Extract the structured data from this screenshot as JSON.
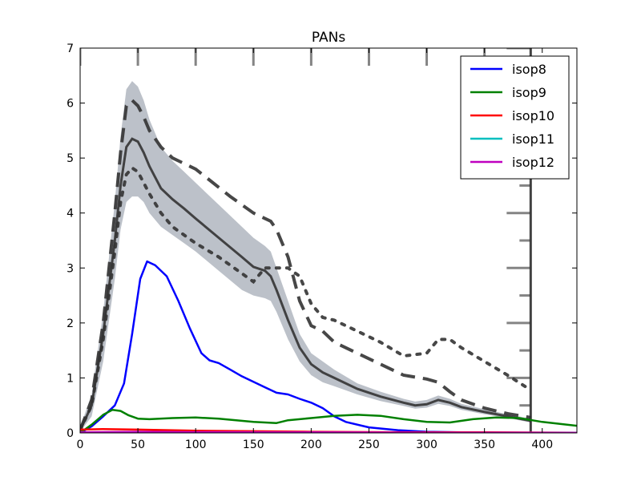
{
  "chart_data": {
    "type": "line",
    "title": "PANs",
    "xlabel": "",
    "ylabel": "",
    "xlim": [
      0,
      430
    ],
    "ylim": [
      0,
      7
    ],
    "x_ticks": [
      0,
      50,
      100,
      150,
      200,
      250,
      300,
      350,
      400
    ],
    "y_ticks": [
      0,
      1,
      2,
      3,
      4,
      5,
      6,
      7
    ],
    "legend_position": "top-right",
    "grid": false,
    "series": [
      {
        "name": "isop8",
        "color": "#0000ff",
        "x": [
          0,
          10,
          20,
          30,
          38,
          45,
          52,
          58,
          65,
          75,
          85,
          95,
          105,
          112,
          120,
          130,
          140,
          150,
          160,
          170,
          180,
          190,
          200,
          210,
          220,
          230,
          250,
          275,
          300,
          330,
          360,
          400,
          430
        ],
        "y": [
          0,
          0.12,
          0.3,
          0.5,
          0.9,
          1.8,
          2.8,
          3.12,
          3.05,
          2.85,
          2.4,
          1.9,
          1.45,
          1.32,
          1.27,
          1.15,
          1.03,
          0.93,
          0.83,
          0.73,
          0.7,
          0.62,
          0.55,
          0.45,
          0.3,
          0.2,
          0.1,
          0.05,
          0.02,
          0.01,
          0.005,
          0.0,
          0.0
        ]
      },
      {
        "name": "isop9",
        "color": "#008000",
        "x": [
          0,
          10,
          20,
          28,
          35,
          42,
          50,
          60,
          80,
          100,
          120,
          150,
          170,
          180,
          200,
          220,
          240,
          260,
          280,
          300,
          320,
          340,
          360,
          380,
          400,
          430
        ],
        "y": [
          0.0,
          0.15,
          0.33,
          0.42,
          0.4,
          0.32,
          0.26,
          0.25,
          0.27,
          0.28,
          0.26,
          0.2,
          0.18,
          0.23,
          0.27,
          0.31,
          0.33,
          0.31,
          0.25,
          0.2,
          0.19,
          0.25,
          0.28,
          0.27,
          0.2,
          0.13
        ]
      },
      {
        "name": "isop10",
        "color": "#ff0000",
        "x": [
          0,
          20,
          50,
          100,
          150,
          200,
          250,
          300,
          350,
          430
        ],
        "y": [
          0.06,
          0.07,
          0.06,
          0.04,
          0.03,
          0.02,
          0.015,
          0.01,
          0.01,
          0.005
        ]
      },
      {
        "name": "isop11",
        "color": "#00bfbf",
        "x": [
          0,
          50,
          100,
          200,
          300,
          430
        ],
        "y": [
          0.005,
          0.01,
          0.01,
          0.005,
          0.003,
          0.002
        ]
      },
      {
        "name": "isop12",
        "color": "#bf00bf",
        "x": [
          0,
          50,
          100,
          200,
          300,
          430
        ],
        "y": [
          0.01,
          0.02,
          0.015,
          0.01,
          0.005,
          0.002
        ]
      }
    ],
    "overlay": {
      "mean_color": "#333333",
      "band_color": "#b0b6c0",
      "x_max": 390,
      "mean": {
        "x": [
          0,
          10,
          20,
          30,
          35,
          40,
          45,
          50,
          55,
          60,
          70,
          80,
          90,
          100,
          120,
          140,
          150,
          160,
          165,
          170,
          180,
          190,
          200,
          210,
          220,
          240,
          260,
          280,
          290,
          300,
          310,
          320,
          330,
          350,
          370,
          390
        ],
        "y": [
          0.05,
          0.5,
          1.8,
          3.5,
          4.5,
          5.2,
          5.35,
          5.3,
          5.1,
          4.85,
          4.45,
          4.25,
          4.08,
          3.9,
          3.55,
          3.2,
          3.02,
          2.95,
          2.85,
          2.6,
          2.05,
          1.55,
          1.25,
          1.1,
          1.0,
          0.8,
          0.66,
          0.55,
          0.5,
          0.52,
          0.6,
          0.55,
          0.47,
          0.38,
          0.3,
          0.22
        ]
      },
      "upper": [
        0.1,
        0.7,
        2.2,
        4.2,
        5.4,
        6.25,
        6.4,
        6.3,
        6.05,
        5.7,
        5.2,
        4.95,
        4.75,
        4.55,
        4.15,
        3.75,
        3.55,
        3.4,
        3.3,
        3.0,
        2.4,
        1.8,
        1.45,
        1.3,
        1.15,
        0.9,
        0.75,
        0.62,
        0.57,
        0.6,
        0.68,
        0.62,
        0.53,
        0.43,
        0.34,
        0.26
      ],
      "lower": [
        0.02,
        0.3,
        1.3,
        2.8,
        3.7,
        4.2,
        4.3,
        4.3,
        4.2,
        4.0,
        3.75,
        3.6,
        3.45,
        3.3,
        2.95,
        2.6,
        2.5,
        2.45,
        2.4,
        2.2,
        1.7,
        1.3,
        1.05,
        0.92,
        0.85,
        0.7,
        0.58,
        0.49,
        0.44,
        0.46,
        0.53,
        0.49,
        0.42,
        0.34,
        0.27,
        0.19
      ],
      "dashed": {
        "x": [
          0,
          10,
          20,
          30,
          35,
          40,
          45,
          50,
          55,
          60,
          70,
          80,
          100,
          130,
          150,
          160,
          165,
          170,
          180,
          190,
          200,
          210,
          220,
          240,
          260,
          280,
          300,
          310,
          320,
          330,
          350,
          370,
          390
        ],
        "y": [
          0.05,
          0.6,
          2.0,
          4.0,
          5.1,
          5.95,
          6.05,
          5.95,
          5.75,
          5.5,
          5.2,
          5.0,
          4.8,
          4.3,
          4.0,
          3.9,
          3.85,
          3.7,
          3.2,
          2.4,
          1.95,
          1.85,
          1.65,
          1.45,
          1.25,
          1.05,
          0.98,
          0.92,
          0.75,
          0.6,
          0.45,
          0.35,
          0.28
        ]
      },
      "dotted": {
        "x": [
          0,
          10,
          20,
          30,
          35,
          40,
          45,
          50,
          60,
          70,
          80,
          100,
          120,
          140,
          150,
          160,
          170,
          180,
          190,
          200,
          210,
          220,
          240,
          260,
          280,
          300,
          310,
          320,
          330,
          350,
          370,
          390
        ],
        "y": [
          0.05,
          0.5,
          1.7,
          3.3,
          4.2,
          4.7,
          4.82,
          4.75,
          4.35,
          4.0,
          3.75,
          3.45,
          3.2,
          2.9,
          2.75,
          3.0,
          3.0,
          3.0,
          2.85,
          2.35,
          2.1,
          2.05,
          1.85,
          1.65,
          1.4,
          1.45,
          1.7,
          1.7,
          1.55,
          1.3,
          1.05,
          0.78
        ]
      }
    }
  }
}
